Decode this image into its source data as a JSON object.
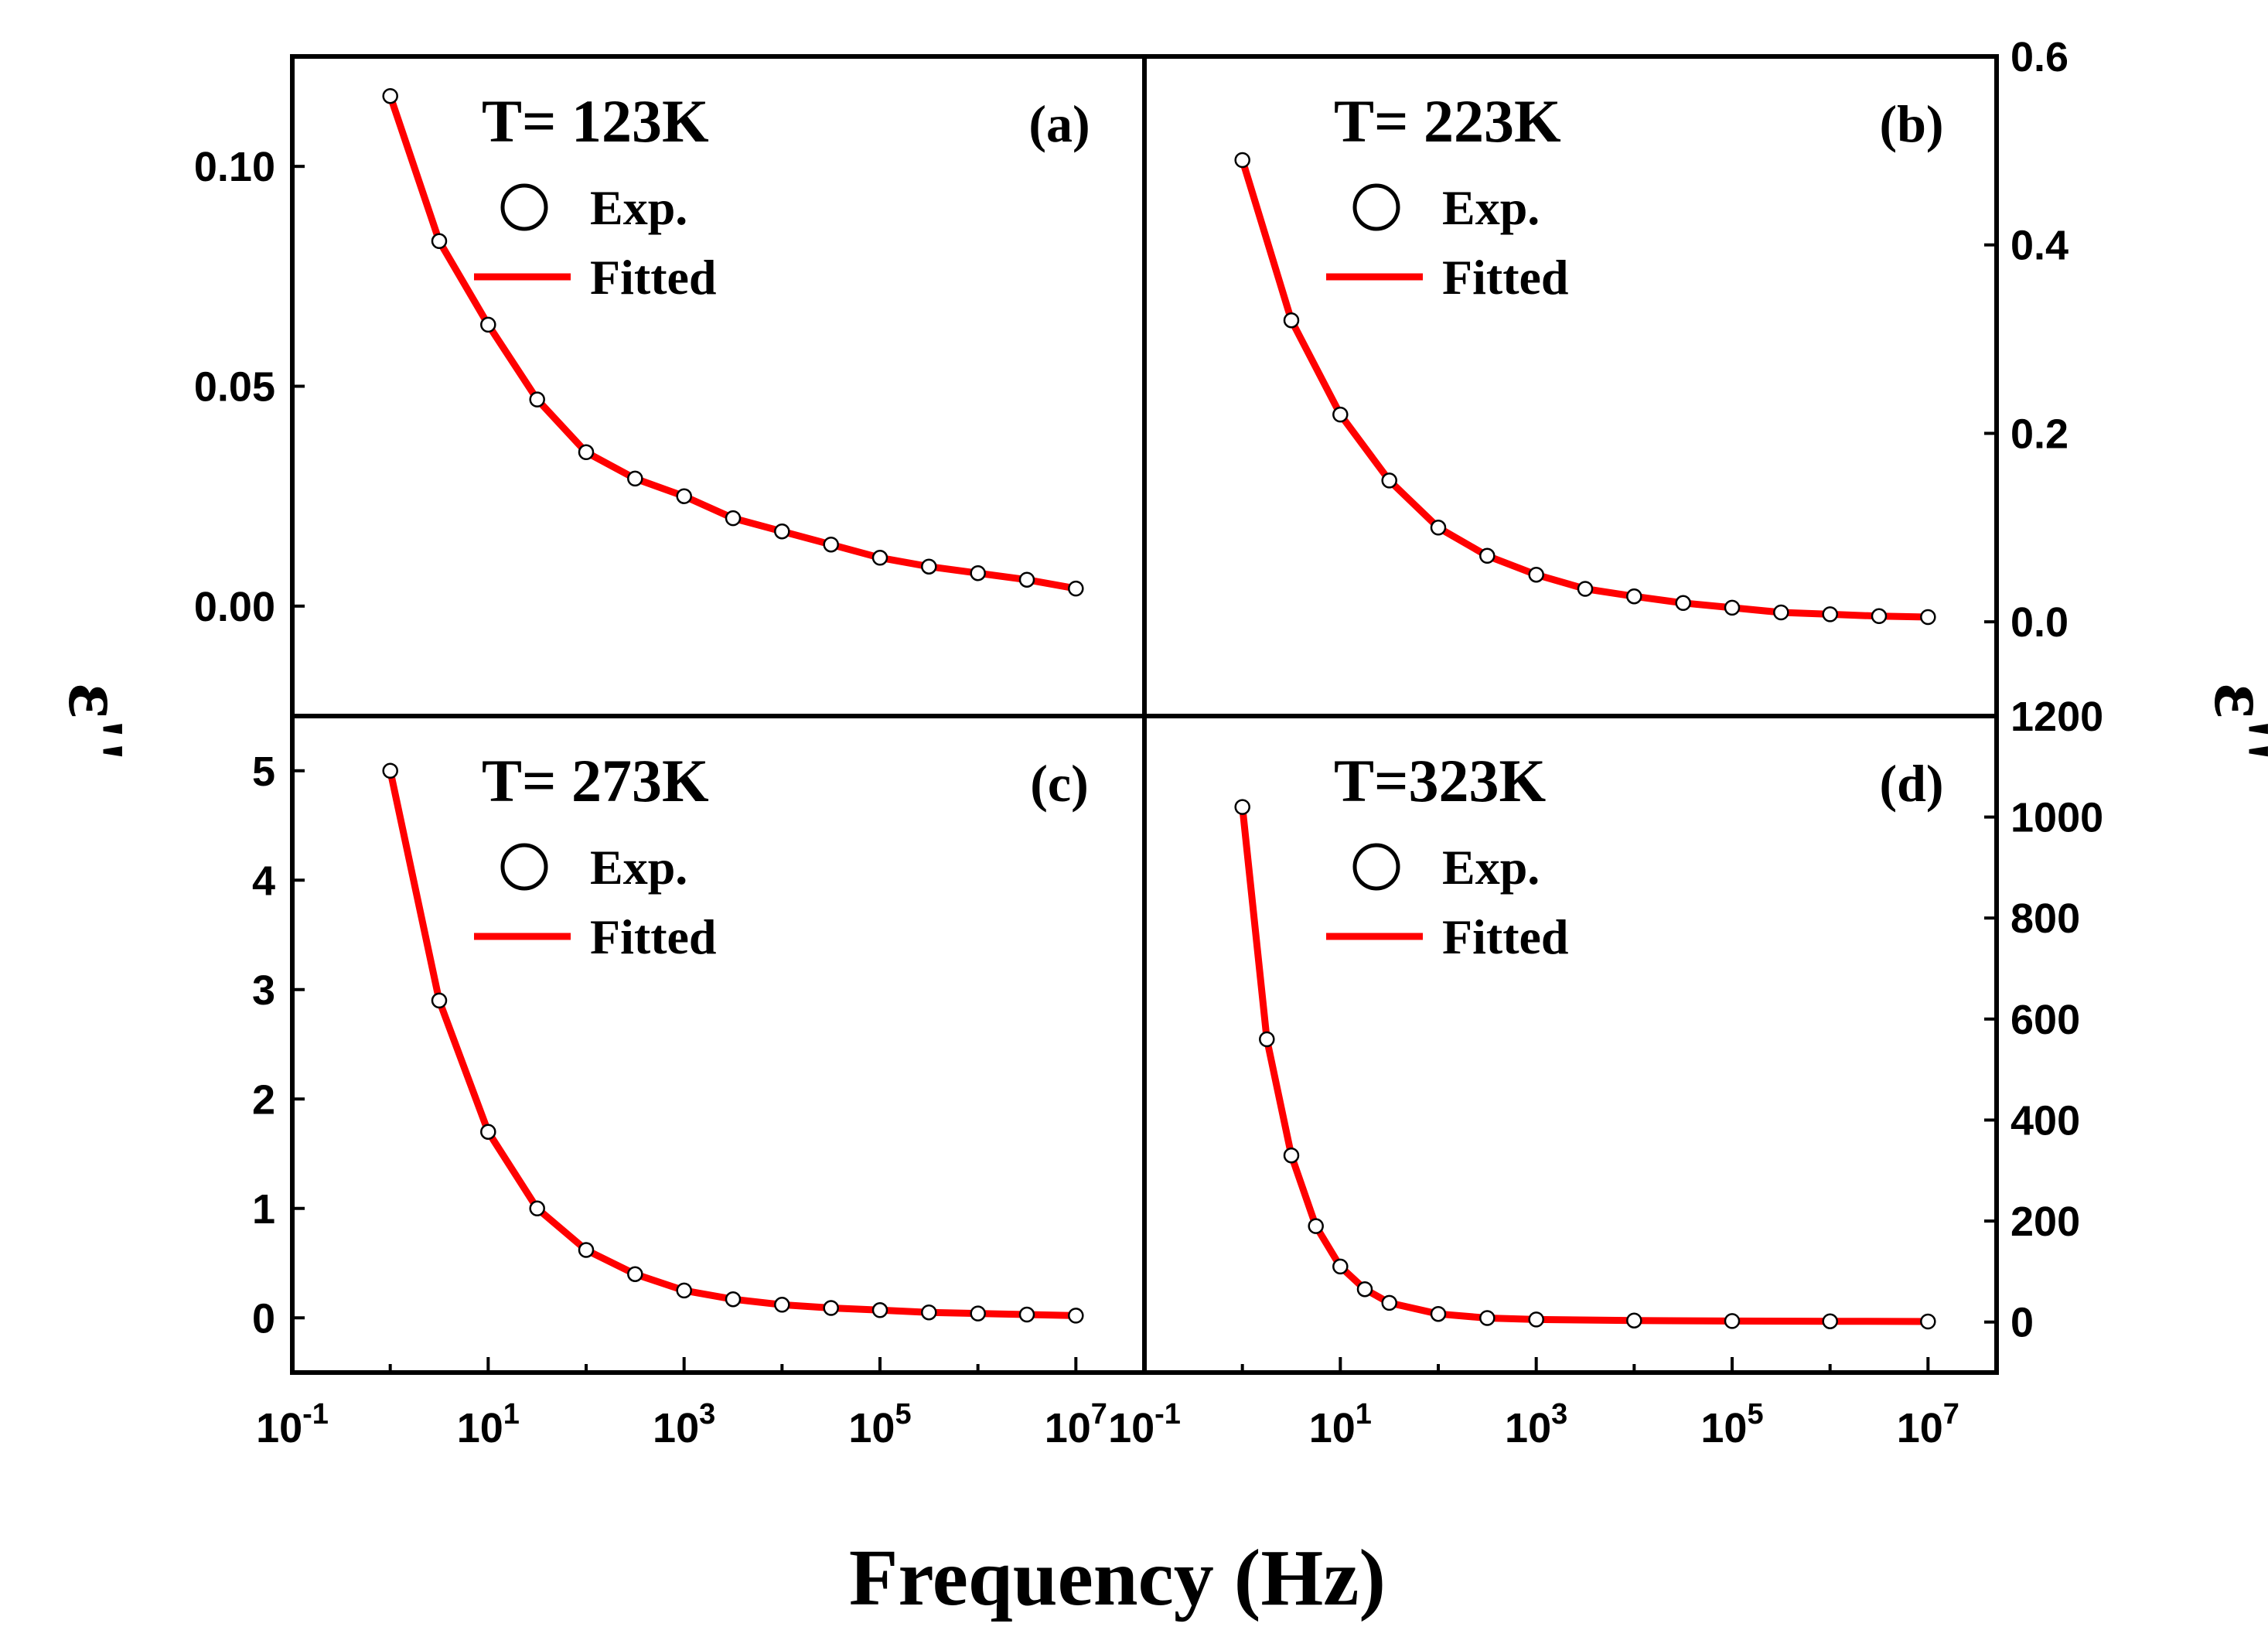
{
  "chart_data": {
    "type": "scatter",
    "xlabel": "Frequency (Hz)",
    "ylabel": "ε''",
    "x_tick_labels": [
      "10-1",
      "101",
      "103",
      "105",
      "107"
    ],
    "xlim_log10": [
      -1,
      7.7
    ],
    "legend": {
      "exp": "Exp.",
      "fit": "Fitted",
      "placement": "top-left"
    },
    "colors": {
      "fit": "#ff0000",
      "marker_edge": "#000000",
      "marker_fill": "#ffffff"
    },
    "panels": [
      {
        "id": "a",
        "label": "(a)",
        "title": "T= 123K",
        "ylim": [
          -0.025,
          0.125
        ],
        "yticks": [
          0.0,
          0.05,
          0.1
        ],
        "ytick_labels": [
          "0.00",
          "0.05",
          "0.10"
        ],
        "y_axis_side": "left",
        "x_log10": [
          0,
          0.5,
          1,
          1.5,
          2,
          2.5,
          3,
          3.5,
          4,
          4.5,
          5,
          5.5,
          6,
          6.5,
          7
        ],
        "y": [
          0.116,
          0.083,
          0.064,
          0.047,
          0.035,
          0.029,
          0.025,
          0.02,
          0.017,
          0.014,
          0.011,
          0.009,
          0.0075,
          0.006,
          0.004
        ]
      },
      {
        "id": "b",
        "label": "(b)",
        "title": "T= 223K",
        "ylim": [
          -0.1,
          0.6
        ],
        "yticks": [
          0.0,
          0.2,
          0.4,
          0.6
        ],
        "ytick_labels": [
          "0.0",
          "0.2",
          "0.4",
          "0.6"
        ],
        "y_axis_side": "right",
        "x_log10": [
          0,
          0.5,
          1,
          1.5,
          2,
          2.5,
          3,
          3.5,
          4,
          4.5,
          5,
          5.5,
          6,
          6.5,
          7
        ],
        "y": [
          0.49,
          0.32,
          0.22,
          0.15,
          0.1,
          0.07,
          0.05,
          0.035,
          0.027,
          0.02,
          0.015,
          0.01,
          0.008,
          0.006,
          0.005
        ]
      },
      {
        "id": "c",
        "label": "(c)",
        "title": "T= 273K",
        "ylim": [
          -0.5,
          5.5
        ],
        "yticks": [
          0,
          1,
          2,
          3,
          4,
          5
        ],
        "ytick_labels": [
          "0",
          "1",
          "2",
          "3",
          "4",
          "5"
        ],
        "y_axis_side": "left",
        "x_log10": [
          0,
          0.5,
          1,
          1.5,
          2,
          2.5,
          3,
          3.5,
          4,
          4.5,
          5,
          5.5,
          6,
          6.5,
          7
        ],
        "y": [
          5.0,
          2.9,
          1.7,
          1.0,
          0.62,
          0.4,
          0.25,
          0.17,
          0.12,
          0.09,
          0.07,
          0.05,
          0.04,
          0.03,
          0.02
        ]
      },
      {
        "id": "d",
        "label": "(d)",
        "title": "T=323K",
        "ylim": [
          -100,
          1200
        ],
        "yticks": [
          0,
          200,
          400,
          600,
          800,
          1000,
          1200
        ],
        "ytick_labels": [
          "0",
          "200",
          "400",
          "600",
          "800",
          "1000",
          "1200"
        ],
        "y_axis_side": "right",
        "x_log10": [
          0,
          0.25,
          0.5,
          0.75,
          1,
          1.25,
          1.5,
          2,
          2.5,
          3,
          4,
          5,
          6,
          7
        ],
        "y": [
          1020,
          560,
          330,
          190,
          110,
          65,
          38,
          16,
          8,
          5,
          3,
          2,
          1.5,
          1
        ]
      }
    ]
  }
}
